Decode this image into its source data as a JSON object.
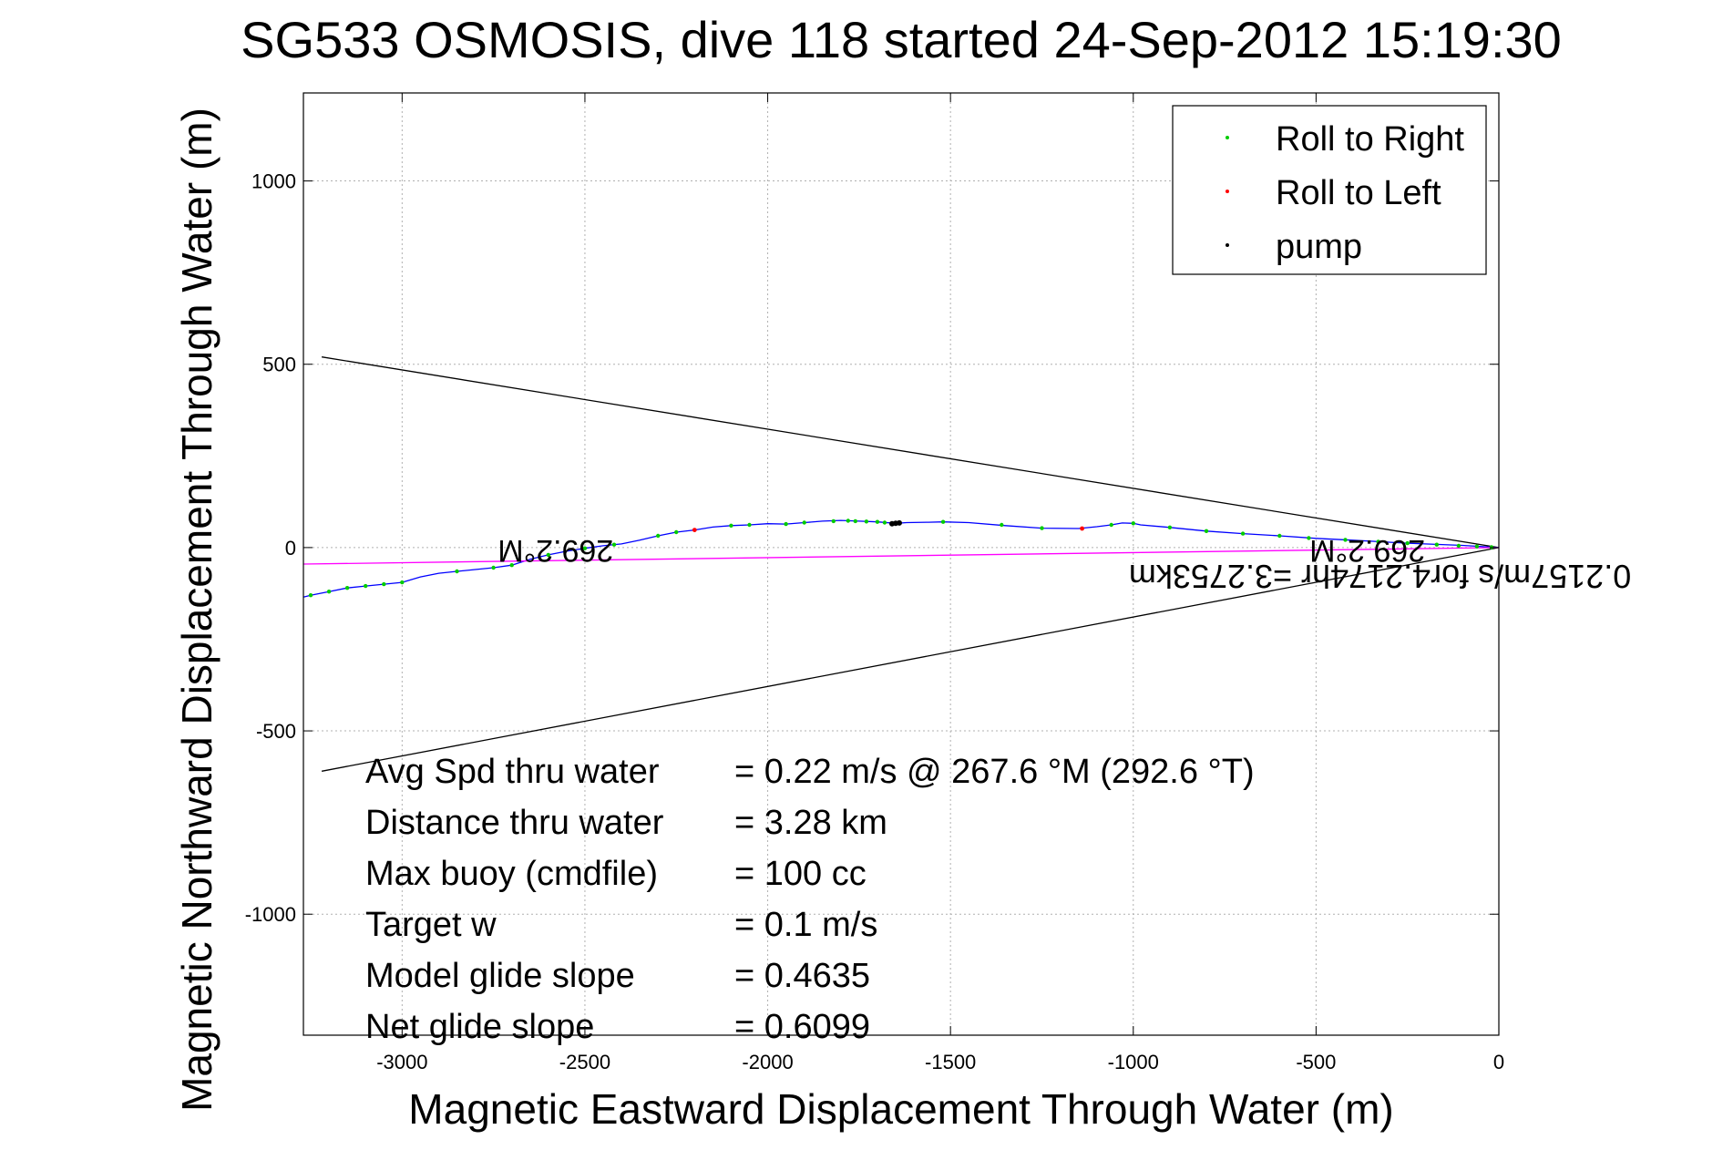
{
  "chart_data": {
    "type": "line",
    "title": "SG533 OSMOSIS, dive 118 started 24-Sep-2012 15:19:30",
    "xlabel": "Magnetic Eastward Displacement Through Water (m)",
    "ylabel": "Magnetic Northward Displacement Through Water (m)",
    "xlim": [
      -3270,
      0
    ],
    "ylim": [
      -1330,
      1240
    ],
    "xticks": [
      -3000,
      -2500,
      -2000,
      -1500,
      -1000,
      -500,
      0
    ],
    "yticks": [
      -1000,
      -500,
      0,
      500,
      1000
    ],
    "grid": true,
    "legend": {
      "position": "top-right",
      "entries": [
        {
          "label": "Roll to Right",
          "color": "#00cc00"
        },
        {
          "label": "Roll to Left",
          "color": "#ff0000"
        },
        {
          "label": "pump",
          "color": "#000000"
        }
      ]
    },
    "series": [
      {
        "kind": "track",
        "color": "#0000ff",
        "x": [
          0,
          -100,
          -250,
          -400,
          -500,
          -600,
          -700,
          -800,
          -900,
          -980,
          -1000,
          -1030,
          -1060,
          -1100,
          -1150,
          -1250,
          -1350,
          -1450,
          -1520,
          -1560,
          -1620,
          -1650,
          -1700,
          -1750,
          -1800,
          -1850,
          -1900,
          -1950,
          -2000,
          -2050,
          -2100,
          -2150,
          -2200,
          -2250,
          -2300,
          -2350,
          -2400,
          -2450,
          -2500,
          -2550,
          -2600,
          -2650,
          -2700,
          -2750,
          -2800,
          -2850,
          -2900,
          -2950,
          -3000,
          -3050,
          -3100,
          -3150,
          -3200,
          -3250,
          -3270
        ],
        "y": [
          0,
          6,
          12,
          20,
          25,
          32,
          38,
          45,
          55,
          62,
          66,
          67,
          62,
          57,
          52,
          53,
          60,
          68,
          70,
          69,
          68,
          66,
          70,
          72,
          74,
          72,
          68,
          64,
          65,
          62,
          60,
          56,
          48,
          42,
          32,
          20,
          10,
          5,
          -2,
          -10,
          -20,
          -32,
          -48,
          -55,
          -60,
          -65,
          -70,
          -80,
          -95,
          -100,
          -105,
          -110,
          -120,
          -130,
          -135
        ]
      },
      {
        "kind": "current",
        "color": "#ff00ff",
        "x": [
          0,
          -3270
        ],
        "y": [
          0,
          -45
        ]
      },
      {
        "kind": "cone-upper",
        "color": "#000000",
        "x": [
          0,
          -3220
        ],
        "y": [
          0,
          520
        ]
      },
      {
        "kind": "cone-lower",
        "color": "#000000",
        "x": [
          0,
          -3220
        ],
        "y": [
          0,
          -610
        ]
      }
    ],
    "markers": {
      "roll_right": {
        "color": "#00cc00",
        "x": [
          -20,
          -60,
          -110,
          -170,
          -250,
          -330,
          -420,
          -520,
          -600,
          -700,
          -800,
          -900,
          -1000,
          -1060,
          -1250,
          -1360,
          -1520,
          -1650,
          -1680,
          -1700,
          -1730,
          -1760,
          -1780,
          -1820,
          -1900,
          -1950,
          -2050,
          -2100,
          -2250,
          -2300,
          -2420,
          -2500,
          -2600,
          -2700,
          -2750,
          -2850,
          -3000,
          -3050,
          -3100,
          -3150,
          -3200,
          -3250
        ],
        "y": [
          1,
          3,
          5,
          8,
          12,
          16,
          21,
          26,
          32,
          38,
          45,
          55,
          66,
          62,
          53,
          62,
          70,
          66,
          68,
          70,
          71,
          72,
          73,
          72,
          68,
          64,
          62,
          60,
          42,
          32,
          8,
          -2,
          -20,
          -48,
          -55,
          -65,
          -95,
          -100,
          -105,
          -110,
          -120,
          -130
        ]
      },
      "roll_left": {
        "color": "#ff0000",
        "x": [
          -1140,
          -2200
        ],
        "y": [
          52,
          48
        ]
      },
      "pump": {
        "color": "#000000",
        "x": [
          -1640,
          -1650,
          -1660
        ],
        "y": [
          67,
          66,
          65
        ]
      }
    },
    "annotations": [
      {
        "text": "269.2°M",
        "x": -360,
        "y": 20,
        "rotated": true
      },
      {
        "text": "269.2°M",
        "x": -2580,
        "y": 20,
        "rotated": true
      },
      {
        "text": "0.2157m/s for4.2174hr =3.2753km",
        "x": -325,
        "y": -48,
        "rotated": true
      }
    ],
    "stats": [
      {
        "label": "Avg Spd thru water",
        "value": "=  0.22 m/s @ 267.6 °M (292.6 °T)"
      },
      {
        "label": "Distance thru water",
        "value": "=  3.28 km"
      },
      {
        "label": "Max buoy (cmdfile)",
        "value": "= 100 cc"
      },
      {
        "label": "Target w",
        "value": "= 0.1 m/s"
      },
      {
        "label": "Model glide slope",
        "value": "= 0.4635"
      },
      {
        "label": "Net glide slope",
        "value": "= 0.6099"
      }
    ]
  }
}
